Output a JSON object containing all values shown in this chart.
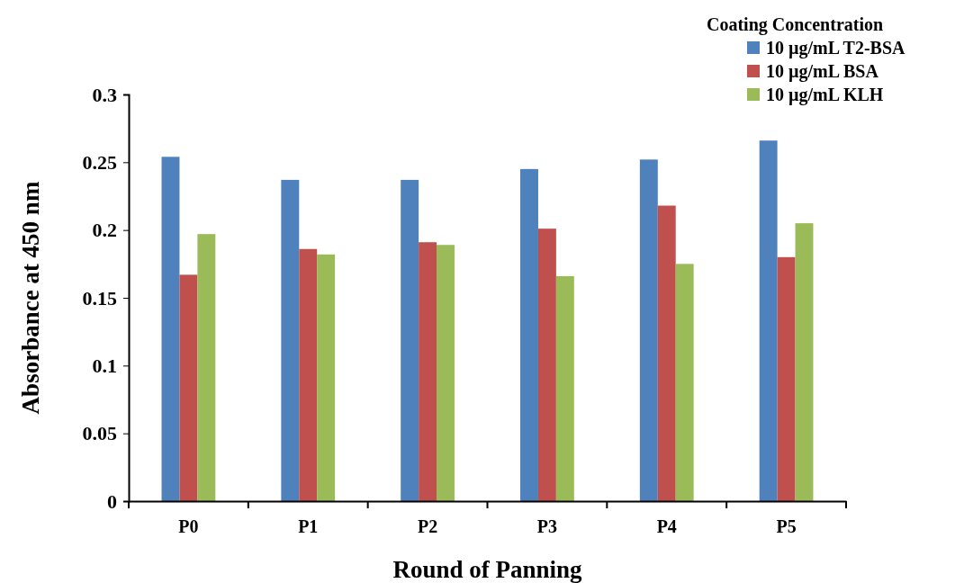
{
  "chart_data": {
    "type": "bar",
    "xlabel": "Round of Panning",
    "ylabel": "Absorbance at 450 nm",
    "legend_title": "Coating Concentration",
    "legend": "top right",
    "categories": [
      "P0",
      "P1",
      "P2",
      "P3",
      "P4",
      "P5"
    ],
    "series": [
      {
        "name": "10 µg/mL T2-BSA",
        "color": "#4f81bd",
        "values": [
          0.254,
          0.237,
          0.237,
          0.245,
          0.252,
          0.266
        ]
      },
      {
        "name": "10 µg/mL BSA",
        "color": "#c0504d",
        "values": [
          0.167,
          0.186,
          0.191,
          0.201,
          0.218,
          0.18
        ]
      },
      {
        "name": "10 µg/mL KLH",
        "color": "#9bbb59",
        "values": [
          0.197,
          0.182,
          0.189,
          0.166,
          0.175,
          0.205
        ]
      }
    ],
    "ylim": [
      0,
      0.3
    ],
    "yticks": [
      0,
      0.05,
      0.1,
      0.15,
      0.2,
      0.25,
      0.3
    ]
  }
}
